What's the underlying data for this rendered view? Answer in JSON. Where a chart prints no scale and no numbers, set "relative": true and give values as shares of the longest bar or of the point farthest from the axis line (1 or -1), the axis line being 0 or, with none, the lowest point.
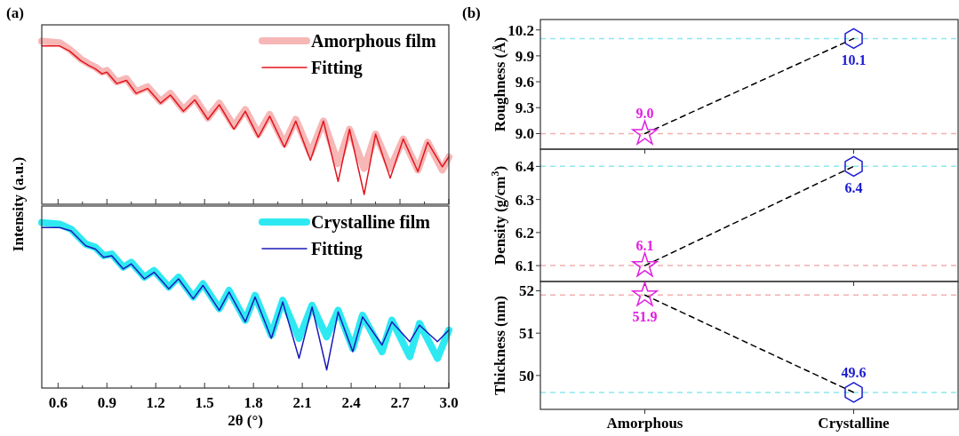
{
  "chart_data": [
    {
      "type": "line",
      "relative": true,
      "annotations": [
        "(a)"
      ],
      "ylabel": "Intensity (a.u.)",
      "legend": "top right",
      "tick_labels": false,
      "xlim": [
        0.5,
        3.0
      ],
      "xticks": [
        0.6,
        {
          "value": 0.75,
          "label": null
        },
        0.9,
        {
          "value": 1.05,
          "label": null
        },
        1.2,
        {
          "value": 1.35,
          "label": null
        },
        1.5,
        {
          "value": 1.65,
          "label": null
        },
        1.8,
        {
          "value": 1.95,
          "label": null
        },
        2.1,
        {
          "value": 2.25,
          "label": null
        },
        2.4,
        {
          "value": 2.55,
          "label": null
        },
        2.7,
        {
          "value": 2.85,
          "label": null
        },
        3
      ],
      "x": [
        0.5,
        0.61,
        0.67,
        0.74,
        0.79,
        0.83,
        0.87,
        0.9,
        0.96,
        1.02,
        1.08,
        1.15,
        1.23,
        1.29,
        1.37,
        1.44,
        1.52,
        1.59,
        1.68,
        1.75,
        1.83,
        1.9,
        1.99,
        2.06,
        2.15,
        2.23,
        2.32,
        2.39,
        2.48,
        2.55,
        2.64,
        2.72,
        2.81,
        2.87,
        2.96,
        3.0
      ],
      "series": [
        {
          "name": "Amorphous film",
          "color": "#f7b7b7",
          "values": [
            1.0,
            0.99,
            0.95,
            0.89,
            0.86,
            0.84,
            0.81,
            0.82,
            0.75,
            0.77,
            0.69,
            0.72,
            0.63,
            0.68,
            0.58,
            0.65,
            0.53,
            0.62,
            0.48,
            0.58,
            0.43,
            0.55,
            0.37,
            0.52,
            0.31,
            0.51,
            0.25,
            0.46,
            0.22,
            0.43,
            0.22,
            0.4,
            0.21,
            0.38,
            0.21,
            0.29
          ]
        },
        {
          "name": "Fitting",
          "color": "#e3141c",
          "values": [
            0.97,
            0.97,
            0.94,
            0.88,
            0.85,
            0.83,
            0.8,
            0.81,
            0.74,
            0.76,
            0.68,
            0.71,
            0.62,
            0.67,
            0.57,
            0.64,
            0.52,
            0.61,
            0.46,
            0.57,
            0.41,
            0.54,
            0.35,
            0.51,
            0.27,
            0.51,
            0.14,
            0.46,
            0.06,
            0.43,
            0.16,
            0.4,
            0.2,
            0.38,
            0.23,
            0.29
          ]
        }
      ]
    },
    {
      "type": "line",
      "relative": true,
      "xlabel": "2θ (°)",
      "legend": "top right",
      "xlim": [
        0.5,
        3.0
      ],
      "xticks": [
        0.6,
        {
          "value": 0.75,
          "label": null
        },
        0.9,
        {
          "value": 1.05,
          "label": null
        },
        1.2,
        {
          "value": 1.35,
          "label": null
        },
        1.5,
        {
          "value": 1.65,
          "label": null
        },
        1.8,
        {
          "value": 1.95,
          "label": null
        },
        2.1,
        {
          "value": 2.25,
          "label": null
        },
        2.4,
        {
          "value": 2.55,
          "label": null
        },
        2.7,
        {
          "value": 2.85,
          "label": null
        },
        {
          "value": 3.0,
          "label": "3.0"
        }
      ],
      "x": [
        0.5,
        0.61,
        0.68,
        0.77,
        0.83,
        0.88,
        0.93,
        1.0,
        1.05,
        1.13,
        1.19,
        1.28,
        1.34,
        1.43,
        1.49,
        1.59,
        1.65,
        1.75,
        1.81,
        1.91,
        1.98,
        2.08,
        2.16,
        2.25,
        2.32,
        2.41,
        2.47,
        2.59,
        2.65,
        2.76,
        2.82,
        2.93,
        3.0
      ],
      "series": [
        {
          "name": "Crystalline film",
          "color": "#2ee9f2",
          "values": [
            1.0,
            0.99,
            0.96,
            0.87,
            0.85,
            0.8,
            0.81,
            0.73,
            0.76,
            0.67,
            0.71,
            0.61,
            0.67,
            0.55,
            0.63,
            0.48,
            0.59,
            0.41,
            0.56,
            0.32,
            0.53,
            0.3,
            0.5,
            0.31,
            0.47,
            0.24,
            0.44,
            0.22,
            0.41,
            0.19,
            0.39,
            0.18,
            0.35
          ]
        },
        {
          "name": "Fitting",
          "color": "#1a1ab8",
          "values": [
            0.97,
            0.97,
            0.95,
            0.86,
            0.84,
            0.79,
            0.8,
            0.72,
            0.75,
            0.66,
            0.7,
            0.6,
            0.66,
            0.54,
            0.62,
            0.47,
            0.58,
            0.4,
            0.55,
            0.3,
            0.52,
            0.18,
            0.49,
            0.11,
            0.46,
            0.22,
            0.43,
            0.26,
            0.4,
            0.28,
            0.38,
            0.28,
            0.35
          ]
        }
      ]
    },
    {
      "type": "scatter",
      "annotations": [
        "(b)"
      ],
      "ylabel": "Roughness (Å)",
      "categories": [
        null,
        null
      ],
      "ylim": [
        8.82,
        10.32
      ],
      "yticks": [
        {
          "value": 9.0,
          "label": "9.0"
        },
        9.3,
        9.6,
        9.9,
        10.2
      ],
      "ref_lines": [
        {
          "axis": "y",
          "value": 9.0,
          "color": "#f4b0b0",
          "line_style": "dashed"
        },
        {
          "axis": "y",
          "value": 10.1,
          "color": "#8de8ef",
          "line_style": "dashed"
        }
      ],
      "series": [
        {
          "type": "line",
          "color": "#000000",
          "line_style": "dashed",
          "values": [
            9.0,
            10.1
          ]
        },
        {
          "color": "#e020e0",
          "marker": "star",
          "values": [
            9.0,
            null
          ],
          "value_labels": [
            "9.0",
            null
          ]
        },
        {
          "color": "#1a1ad0",
          "values": [
            null,
            10.1
          ],
          "value_labels": [
            null,
            "10.1"
          ]
        }
      ]
    },
    {
      "type": "scatter",
      "ylabel": "Density (g/cm$^{3}$)",
      "categories": [
        null,
        null
      ],
      "ylim": [
        6.052,
        6.452
      ],
      "yticks": [
        6.1,
        6.2,
        6.3,
        6.4
      ],
      "ref_lines": [
        {
          "axis": "y",
          "value": 6.1,
          "color": "#f4b0b0",
          "line_style": "dashed"
        },
        {
          "axis": "y",
          "value": 6.4,
          "color": "#8de8ef",
          "line_style": "dashed"
        }
      ],
      "series": [
        {
          "type": "line",
          "color": "#000000",
          "line_style": "dashed",
          "values": [
            6.1,
            6.4
          ]
        },
        {
          "color": "#e020e0",
          "marker": "star",
          "values": [
            6.1,
            null
          ],
          "value_labels": [
            "6.1",
            null
          ]
        },
        {
          "color": "#1a1ad0",
          "values": [
            null,
            6.4
          ],
          "value_labels": [
            null,
            "6.4"
          ]
        }
      ]
    },
    {
      "type": "scatter",
      "ylabel": "Thickness (nm)",
      "categories": [
        "Amorphous",
        "Crystalline"
      ],
      "ylim": [
        49.2,
        52.22
      ],
      "yticks": [
        50,
        51,
        52
      ],
      "ref_lines": [
        {
          "axis": "y",
          "value": 51.9,
          "color": "#f4b0b0",
          "line_style": "dashed"
        },
        {
          "axis": "y",
          "value": 49.6,
          "color": "#8de8ef",
          "line_style": "dashed"
        }
      ],
      "series": [
        {
          "type": "line",
          "color": "#000000",
          "line_style": "dashed",
          "values": [
            51.9,
            49.6
          ]
        },
        {
          "color": "#e020e0",
          "marker": "star",
          "values": [
            51.9,
            null
          ],
          "value_labels": [
            "51.9",
            null
          ]
        },
        {
          "color": "#1a1ad0",
          "values": [
            null,
            49.6
          ],
          "value_labels": [
            null,
            "49.6"
          ]
        }
      ]
    }
  ]
}
